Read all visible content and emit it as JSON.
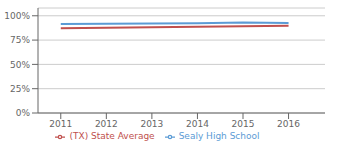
{
  "chart_data": {
    "type": "line",
    "x": [
      2011,
      2012,
      2013,
      2014,
      2015,
      2016
    ],
    "series": [
      {
        "name": "Sealy High School",
        "color": "#5b9bd5",
        "values": [
          0.915,
          0.918,
          0.92,
          0.922,
          0.93,
          0.925
        ]
      },
      {
        "name": "(TX) State Average",
        "color": "#c0504d",
        "values": [
          0.872,
          0.876,
          0.882,
          0.888,
          0.893,
          0.898
        ]
      }
    ],
    "xlim": [
      2010.5,
      2016.8
    ],
    "xticks": [
      2011,
      2012,
      2013,
      2014,
      2015,
      2016
    ],
    "ylim": [
      0,
      1.08
    ],
    "yticks": [
      {
        "value": 0,
        "label": "0%"
      },
      {
        "value": 0.25,
        "label": "25%"
      },
      {
        "value": 0.5,
        "label": "50%"
      },
      {
        "value": 0.75,
        "label": "75%"
      },
      {
        "value": 1.0,
        "label": "100%"
      }
    ],
    "grid": "y",
    "legend": "bottom"
  }
}
